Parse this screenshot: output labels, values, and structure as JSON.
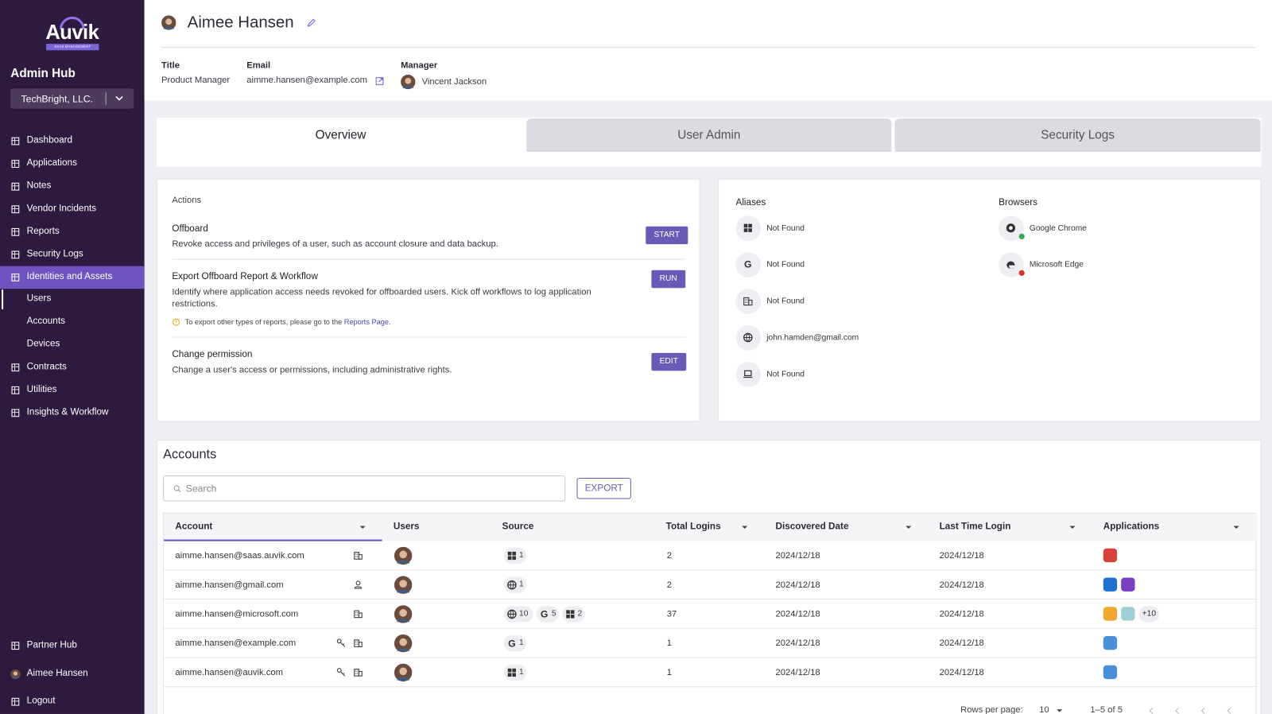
{
  "sidebar": {
    "logo": "Auvik",
    "logo_tagline": "SAAS MANAGEMENT",
    "hub": "Admin Hub",
    "org": "TechBright, LLC.",
    "nav": [
      {
        "label": "Dashboard"
      },
      {
        "label": "Applications"
      },
      {
        "label": "Notes"
      },
      {
        "label": "Vendor Incidents"
      },
      {
        "label": "Reports"
      },
      {
        "label": "Security Logs"
      },
      {
        "label": "Identities and Assets",
        "active": true
      },
      {
        "label": "Users",
        "sub": true,
        "selected": true
      },
      {
        "label": "Accounts",
        "sub": true
      },
      {
        "label": "Devices",
        "sub": true
      },
      {
        "label": "Contracts"
      },
      {
        "label": "Utilities"
      },
      {
        "label": "Insights & Workflow"
      }
    ],
    "footer": [
      "Partner Hub",
      "Aimee Hansen",
      "Logout"
    ]
  },
  "header": {
    "name": "Aimee Hansen",
    "fields": [
      {
        "label": "Title",
        "value": "Product Manager"
      },
      {
        "label": "Email",
        "value": "aimme.hansen@example.com"
      },
      {
        "label": "Manager",
        "value": "Vincent Jackson"
      }
    ]
  },
  "tabs": {
    "items": [
      "Overview",
      "User Admin",
      "Security Logs"
    ],
    "active": 0
  },
  "actions": {
    "heading": "Actions",
    "items": [
      {
        "title": "Offboard",
        "description": "Revoke access and privileges of a user, such as account closure and data backup.",
        "button": "START"
      },
      {
        "title": "Export Offboard Report & Workflow",
        "description": "Identify where application access needs revoked for offboarded users. Kick off workflows to log application restrictions.",
        "button": "RUN",
        "note": {
          "text": "To export other types of reports, please go to the",
          "link": "Reports Page",
          "end": "."
        }
      },
      {
        "title": "Change permission",
        "description": "Change a user's access or permissions, including administrative rights.",
        "button": "EDIT"
      }
    ]
  },
  "aliases": {
    "heading": "Aliases",
    "items": [
      {
        "kind": "windows",
        "value": "Not Found"
      },
      {
        "kind": "google",
        "value": "Not Found"
      },
      {
        "kind": "org",
        "value": "Not Found"
      },
      {
        "kind": "web",
        "value": "john.hamden@gmail.com"
      },
      {
        "kind": "device",
        "value": "Not Found"
      }
    ]
  },
  "browsers": {
    "heading": "Browsers",
    "items": [
      {
        "name": "Google Chrome",
        "status_color": "#3aa757"
      },
      {
        "name": "Microsoft Edge",
        "status_color": "#d93025"
      }
    ]
  },
  "accounts": {
    "title": "Accounts",
    "search_placeholder": "Search",
    "export": "EXPORT",
    "columns": [
      {
        "label": "Account",
        "sortable": true
      },
      {
        "label": "Users"
      },
      {
        "label": "Source"
      },
      {
        "label": "Total Logins",
        "sortable": true
      },
      {
        "label": "Discovered Date",
        "sortable": true
      },
      {
        "label": "Last Time Login",
        "sortable": true
      },
      {
        "label": "Applications",
        "sortable": true
      }
    ],
    "rows": [
      {
        "account": "aimme.hansen@saas.auvik.com",
        "icons": [
          "org"
        ],
        "sources": [
          {
            "kind": "windows",
            "count": 1
          }
        ],
        "total_logins": 2,
        "discovered": "2024/12/18",
        "last_login": "2024/12/18",
        "apps": [
          "#d9423a"
        ]
      },
      {
        "account": "aimme.hansen@gmail.com",
        "icons": [
          "person"
        ],
        "sources": [
          {
            "kind": "web",
            "count": 1
          }
        ],
        "total_logins": 2,
        "discovered": "2024/12/18",
        "last_login": "2024/12/18",
        "apps": [
          "#1f6fd1",
          "#7b3fc4"
        ]
      },
      {
        "account": "aimme.hansen@microsoft.com",
        "icons": [
          "org"
        ],
        "sources": [
          {
            "kind": "web",
            "count": 10
          },
          {
            "kind": "google",
            "count": 5
          },
          {
            "kind": "windows",
            "count": 2
          }
        ],
        "total_logins": 37,
        "discovered": "2024/12/18",
        "last_login": "2024/12/18",
        "apps": [
          "#f0a830",
          "#9fd0d8"
        ],
        "apps_more": "+10"
      },
      {
        "account": "aimme.hansen@example.com",
        "icons": [
          "key",
          "org"
        ],
        "sources": [
          {
            "kind": "google",
            "count": 1
          }
        ],
        "total_logins": 1,
        "discovered": "2024/12/18",
        "last_login": "2024/12/18",
        "apps": [
          "#4a90d9"
        ]
      },
      {
        "account": "aimme.hansen@auvik.com",
        "icons": [
          "key",
          "org"
        ],
        "sources": [
          {
            "kind": "windows",
            "count": 1
          }
        ],
        "total_logins": 1,
        "discovered": "2024/12/18",
        "last_login": "2024/12/18",
        "apps": [
          "#4a90d9"
        ]
      }
    ],
    "pagination": {
      "rows_per_page_label": "Rows per page:",
      "rows_per_page": 10,
      "range": "1–5 of 5"
    }
  }
}
